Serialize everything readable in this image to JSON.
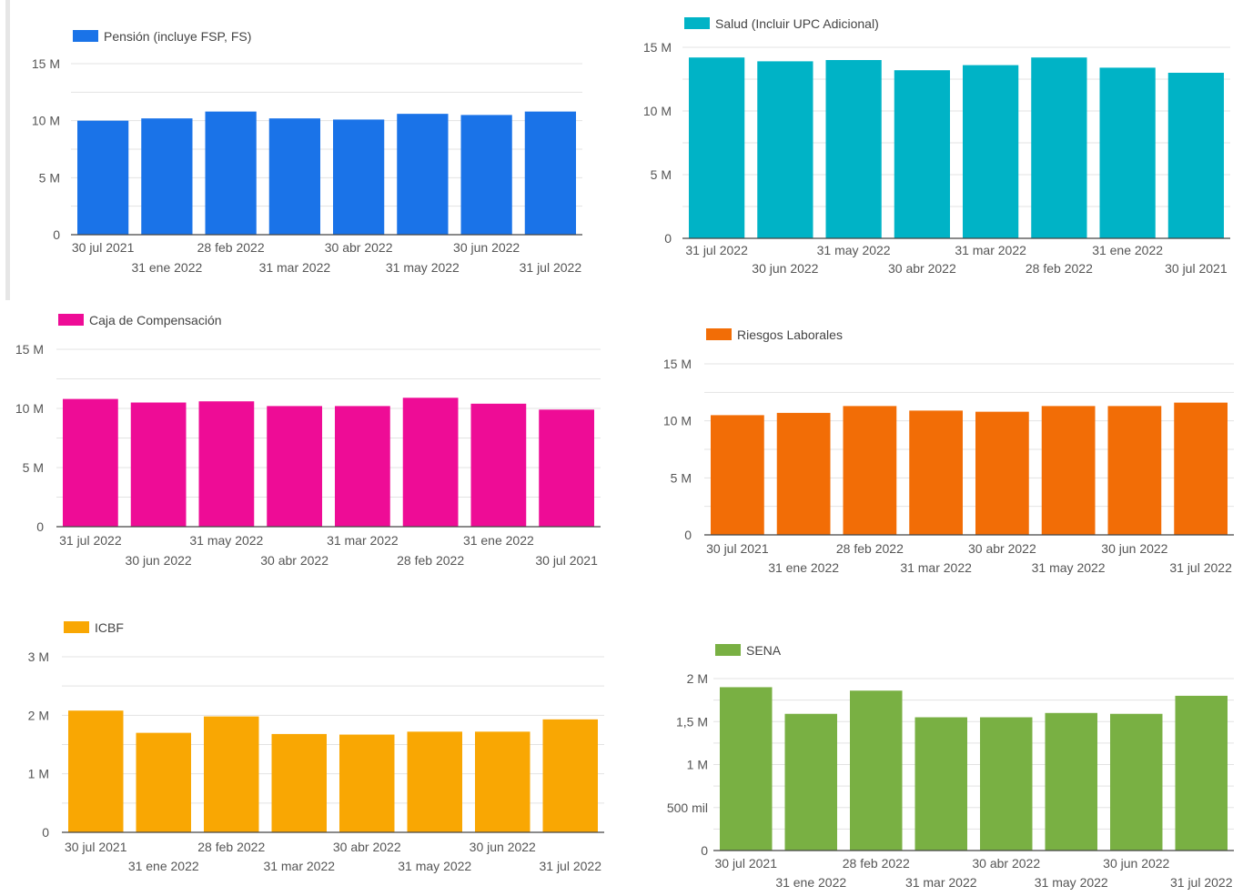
{
  "chart_data": [
    {
      "type": "bar",
      "id": "pension",
      "legend": "Pensión (incluye FSP, FS)",
      "color": "#1a73e8",
      "categories": [
        "30 jul 2021",
        "31 ene 2022",
        "28 feb 2022",
        "31 mar 2022",
        "30 abr 2022",
        "31 may 2022",
        "30 jun 2022",
        "31 jul 2022"
      ],
      "values": [
        10000000,
        10200000,
        10800000,
        10200000,
        10100000,
        10600000,
        10500000,
        10800000
      ],
      "yticks": [
        {
          "v": 0,
          "label": "0"
        },
        {
          "v": 5000000,
          "label": "5 M"
        },
        {
          "v": 10000000,
          "label": "10 M"
        },
        {
          "v": 15000000,
          "label": "15 M"
        }
      ],
      "ylim": [
        0,
        15000000
      ],
      "grid_max": 16000000
    },
    {
      "type": "bar",
      "id": "salud",
      "legend": "Salud (Incluir UPC Adicional)",
      "color": "#00b3c6",
      "categories": [
        "31 jul 2022",
        "30 jun 2022",
        "31 may 2022",
        "30 abr 2022",
        "31 mar 2022",
        "28 feb 2022",
        "31 ene 2022",
        "30 jul 2021"
      ],
      "values": [
        14200000,
        13900000,
        14000000,
        13200000,
        13600000,
        14200000,
        13400000,
        13000000
      ],
      "yticks": [
        {
          "v": 0,
          "label": "0"
        },
        {
          "v": 5000000,
          "label": "5 M"
        },
        {
          "v": 10000000,
          "label": "10 M"
        },
        {
          "v": 15000000,
          "label": "15 M"
        }
      ],
      "ylim": [
        0,
        15000000
      ],
      "grid_max": 15000000
    },
    {
      "type": "bar",
      "id": "caja",
      "legend": "Caja de Compensación",
      "color": "#ee0c96",
      "categories": [
        "31 jul 2022",
        "30 jun 2022",
        "31 may 2022",
        "30 abr 2022",
        "31 mar 2022",
        "28 feb 2022",
        "31 ene 2022",
        "30 jul 2021"
      ],
      "values": [
        10800000,
        10500000,
        10600000,
        10200000,
        10200000,
        10900000,
        10400000,
        9900000
      ],
      "yticks": [
        {
          "v": 0,
          "label": "0"
        },
        {
          "v": 5000000,
          "label": "5 M"
        },
        {
          "v": 10000000,
          "label": "10 M"
        },
        {
          "v": 15000000,
          "label": "15 M"
        }
      ],
      "ylim": [
        0,
        15000000
      ],
      "grid_max": 15000000
    },
    {
      "type": "bar",
      "id": "riesgos",
      "legend": "Riesgos Laborales",
      "color": "#f26d06",
      "categories": [
        "30 jul 2021",
        "31 ene 2022",
        "28 feb 2022",
        "31 mar 2022",
        "30 abr 2022",
        "31 may 2022",
        "30 jun 2022",
        "31 jul 2022"
      ],
      "values": [
        10500000,
        10700000,
        11300000,
        10900000,
        10800000,
        11300000,
        11300000,
        11600000
      ],
      "yticks": [
        {
          "v": 0,
          "label": "0"
        },
        {
          "v": 5000000,
          "label": "5 M"
        },
        {
          "v": 10000000,
          "label": "10 M"
        },
        {
          "v": 15000000,
          "label": "15 M"
        }
      ],
      "ylim": [
        0,
        15000000
      ],
      "grid_max": 15000000
    },
    {
      "type": "bar",
      "id": "icbf",
      "legend": "ICBF",
      "color": "#f9a703",
      "categories": [
        "30 jul 2021",
        "31 ene 2022",
        "28 feb 2022",
        "31 mar 2022",
        "30 abr 2022",
        "31 may 2022",
        "30 jun 2022",
        "31 jul 2022"
      ],
      "values": [
        2080000,
        1700000,
        1980000,
        1680000,
        1670000,
        1720000,
        1720000,
        1930000
      ],
      "yticks": [
        {
          "v": 0,
          "label": "0"
        },
        {
          "v": 1000000,
          "label": "1 M"
        },
        {
          "v": 2000000,
          "label": "2 M"
        },
        {
          "v": 3000000,
          "label": "3 M"
        }
      ],
      "ylim": [
        0,
        3000000
      ],
      "grid_max": 3000000
    },
    {
      "type": "bar",
      "id": "sena",
      "legend": "SENA",
      "color": "#79b043",
      "categories": [
        "30 jul 2021",
        "31 ene 2022",
        "28 feb 2022",
        "31 mar 2022",
        "30 abr 2022",
        "31 may 2022",
        "30 jun 2022",
        "31 jul 2022"
      ],
      "values": [
        1900000,
        1590000,
        1860000,
        1550000,
        1550000,
        1600000,
        1590000,
        1800000
      ],
      "yticks": [
        {
          "v": 0,
          "label": "0"
        },
        {
          "v": 500000,
          "label": "500 mil"
        },
        {
          "v": 1000000,
          "label": "1 M"
        },
        {
          "v": 1500000,
          "label": "1,5 M"
        },
        {
          "v": 2000000,
          "label": "2 M"
        }
      ],
      "ylim": [
        0,
        2000000
      ],
      "grid_max": 2000000
    }
  ]
}
